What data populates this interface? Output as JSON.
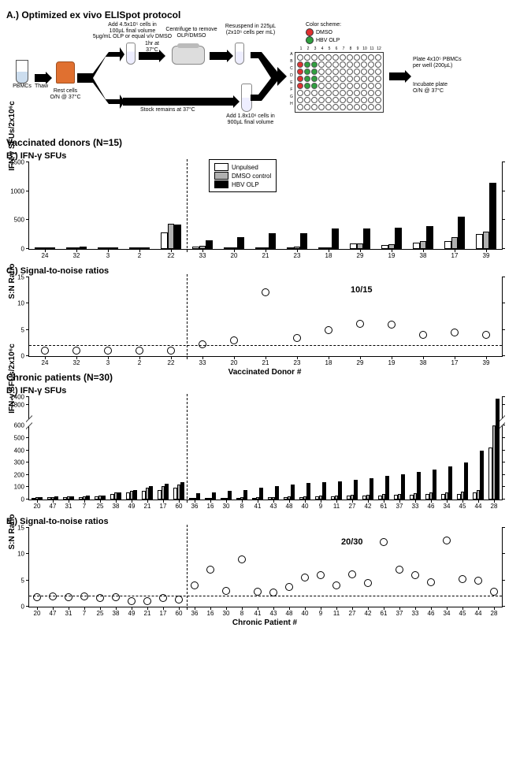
{
  "panelA": {
    "title": "A.) Optimized ex vivo ELISpot protocol",
    "steps": {
      "pbmcs": "PBMCs",
      "thaw": "Thaw",
      "rest": "Rest cells\nO/N @ 37°C",
      "add_top": "Add 4.5x10⁵ cells in\n100µL final volume\n5µg/mL OLP or equal v/v DMSO",
      "incubate": "1hr at 37°C",
      "centrifuge": "Centrifuge to remove\nOLP/DMSO",
      "resuspend": "Resuspend in 225µL\n(2x10⁶ cells per mL)",
      "stock": "Stock remains at 37°C",
      "add_bottom": "Add 1.8x10⁶ cells in\n900µL final volume",
      "color_scheme": "Color scheme:",
      "dmso": "DMSO",
      "dmso_color": "#e03030",
      "hbvolp": "HBV OLP",
      "hbvolp_color": "#30a040",
      "plate_note1": "Plate 4x10⁵ PBMCs\nper well (200µL)",
      "plate_note2": "Incubate plate\nO/N @ 37°C",
      "plate_cols": [
        "1",
        "2",
        "3",
        "4",
        "5",
        "6",
        "7",
        "8",
        "9",
        "10",
        "11",
        "12"
      ],
      "plate_rows": [
        "A",
        "B",
        "C",
        "D",
        "E",
        "F",
        "G",
        "H"
      ],
      "plate_red": [
        "B1",
        "C1",
        "D1",
        "E1"
      ],
      "plate_green": [
        "B2",
        "B3",
        "C2",
        "C3",
        "D2",
        "D3",
        "E2",
        "E3"
      ]
    }
  },
  "vaccinated_title": "Vaccinated donors (N=15)",
  "panelB": {
    "title": "B.) IFN-γ SFUs",
    "ylabel": "IFN-γ SFUs/2x10⁶c",
    "ymax": 1500,
    "yticks": [
      0,
      500,
      1000,
      1500
    ],
    "categories": [
      "24",
      "32",
      "3",
      "2",
      "22",
      "33",
      "20",
      "21",
      "23",
      "18",
      "29",
      "19",
      "38",
      "17",
      "39"
    ],
    "dashed_after_index": 5,
    "legend": {
      "unpulsed": "Unpulsed",
      "dmso": "DMSO control",
      "hbv": "HBV OLP"
    },
    "series": {
      "unpulsed": [
        20,
        25,
        18,
        15,
        280,
        45,
        18,
        20,
        30,
        15,
        90,
        70,
        110,
        130,
        260
      ],
      "dmso": [
        25,
        30,
        22,
        18,
        440,
        50,
        25,
        25,
        40,
        20,
        100,
        80,
        130,
        200,
        300
      ],
      "hbv": [
        30,
        35,
        28,
        25,
        420,
        150,
        200,
        270,
        270,
        350,
        360,
        370,
        400,
        560,
        1140
      ]
    }
  },
  "panelC": {
    "title": "C.) Signal-to-noise ratios",
    "ylabel": "S:N Ratio",
    "xlabel": "Vaccinated Donor #",
    "ymax": 15,
    "yticks": [
      0,
      5,
      10,
      15
    ],
    "threshold": 2,
    "categories": [
      "24",
      "32",
      "3",
      "2",
      "22",
      "33",
      "20",
      "21",
      "23",
      "18",
      "29",
      "19",
      "38",
      "17",
      "39"
    ],
    "dashed_after_index": 5,
    "values": [
      1.0,
      1.0,
      1.0,
      1.0,
      1.0,
      2.2,
      3.0,
      12.2,
      3.5,
      5.0,
      6.2,
      6.0,
      4.0,
      4.5,
      4.0
    ],
    "annotation": "10/15"
  },
  "chronic_title": "Chronic patients (N=30)",
  "panelD": {
    "title": "D.) IFN-γ SFUs",
    "ylabel": "IFN-γ SFUs/2x10⁶c",
    "yticks_lower": [
      0,
      100,
      200,
      300,
      400,
      500,
      600
    ],
    "yticks_upper": [
      600,
      1800,
      2400
    ],
    "ymax_lower": 600,
    "ymin_upper": 600,
    "ymax_upper": 2400,
    "categories": [
      "20",
      "47",
      "31",
      "7",
      "25",
      "38",
      "49",
      "21",
      "17",
      "60",
      "36",
      "16",
      "30",
      "8",
      "41",
      "43",
      "48",
      "40",
      "9",
      "11",
      "27",
      "42",
      "61",
      "37",
      "33",
      "46",
      "34",
      "45",
      "44",
      "28"
    ],
    "dashed_after_index": 10,
    "series": {
      "unpulsed": [
        15,
        18,
        20,
        22,
        25,
        45,
        55,
        70,
        80,
        95,
        10,
        12,
        12,
        14,
        15,
        18,
        20,
        22,
        25,
        28,
        30,
        32,
        35,
        38,
        40,
        42,
        45,
        48,
        55,
        420
      ],
      "dmso": [
        18,
        22,
        25,
        28,
        30,
        55,
        70,
        95,
        110,
        120,
        12,
        14,
        15,
        18,
        20,
        22,
        25,
        28,
        32,
        35,
        38,
        40,
        45,
        48,
        50,
        55,
        60,
        65,
        80,
        600
      ],
      "hbv": [
        20,
        25,
        28,
        32,
        35,
        60,
        80,
        110,
        130,
        140,
        50,
        60,
        70,
        80,
        95,
        110,
        120,
        135,
        140,
        150,
        160,
        175,
        190,
        205,
        225,
        245,
        270,
        300,
        400,
        2300
      ]
    }
  },
  "panelE": {
    "title": "E.) Signal-to-noise ratios",
    "ylabel": "S:N Ratio",
    "xlabel": "Chronic Patient #",
    "ymax": 15,
    "yticks": [
      0,
      5,
      10,
      15
    ],
    "threshold": 2,
    "categories": [
      "20",
      "47",
      "31",
      "7",
      "25",
      "38",
      "49",
      "21",
      "17",
      "60",
      "36",
      "16",
      "30",
      "8",
      "41",
      "43",
      "48",
      "40",
      "9",
      "11",
      "27",
      "42",
      "61",
      "37",
      "33",
      "46",
      "34",
      "45",
      "44",
      "28"
    ],
    "dashed_after_index": 10,
    "values": [
      1.8,
      2.0,
      1.8,
      2.0,
      1.7,
      1.8,
      1.0,
      1.0,
      1.7,
      1.4,
      4.0,
      7.0,
      3.0,
      9.0,
      2.8,
      2.7,
      3.8,
      5.5,
      6.0,
      4.0,
      6.1,
      4.5,
      12.3,
      7.0,
      6.0,
      4.7,
      12.6,
      5.2,
      5.0,
      2.9
    ],
    "annotation": "20/30"
  },
  "colors": {
    "unpulsed": "#ffffff",
    "dmso": "#b0b0b0",
    "hbv": "#000000",
    "marker_stroke": "#000000"
  }
}
